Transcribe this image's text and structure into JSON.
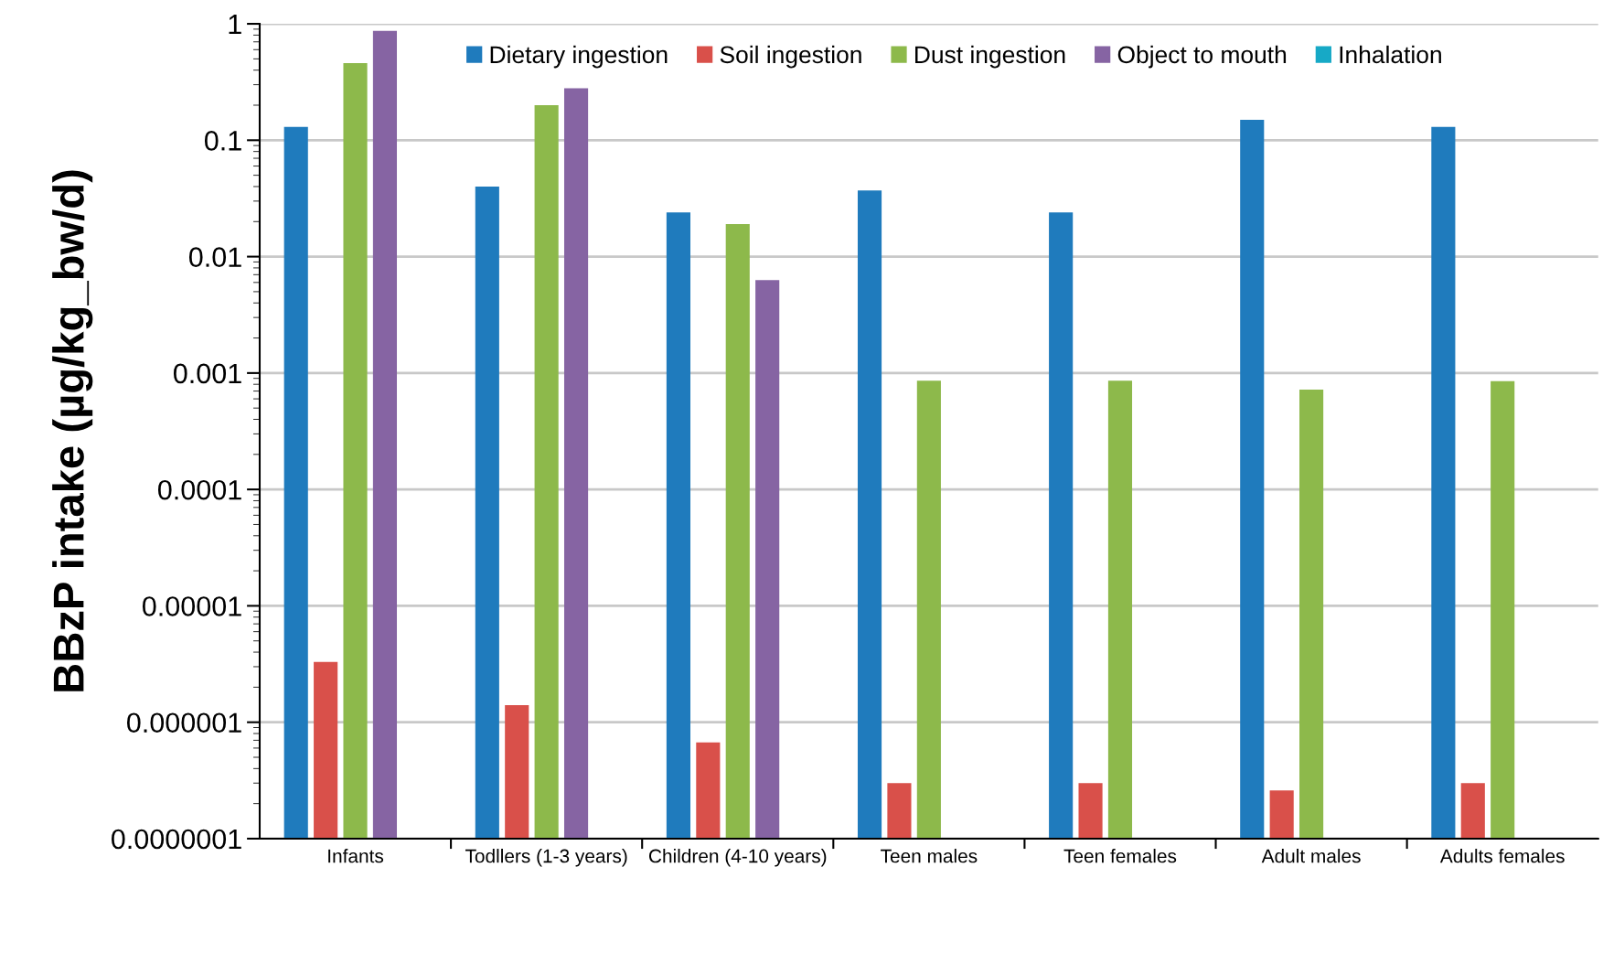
{
  "chart_data": {
    "type": "bar",
    "ylabel": "BBzP intake (µg/kg_bw/d)",
    "log": "y",
    "grid": "y",
    "legend": "top right",
    "categories": [
      "Infants",
      "Todllers (1-3 years)",
      "Children (4-10 years)",
      "Teen males",
      "Teen females",
      "Adult males",
      "Adults females"
    ],
    "ylim": [
      1e-07,
      1
    ],
    "yticks": [
      {
        "value": 1e-07,
        "label": "0.0000001"
      },
      {
        "value": 1e-06,
        "label": "0.000001"
      },
      {
        "value": 1e-05,
        "label": "0.00001"
      },
      {
        "value": 0.0001,
        "label": "0.0001"
      },
      {
        "value": 0.001,
        "label": "0.001"
      },
      {
        "value": 0.01,
        "label": "0.01"
      },
      {
        "value": 0.1,
        "label": "0.1"
      },
      1
    ],
    "series": [
      {
        "name": "Dietary ingestion",
        "color": "#1f7bbd",
        "values": [
          0.13,
          0.04,
          0.024,
          0.037,
          0.024,
          0.15,
          0.13
        ]
      },
      {
        "name": "Soil ingestion",
        "color": "#d9504a",
        "values": [
          3.3e-06,
          1.4e-06,
          6.7e-07,
          3e-07,
          3e-07,
          2.6e-07,
          3e-07
        ]
      },
      {
        "name": "Dust ingestion",
        "color": "#8db94b",
        "values": [
          0.46,
          0.2,
          0.019,
          0.00086,
          0.00086,
          0.00072,
          0.00085
        ]
      },
      {
        "name": "Object to mouth",
        "color": "#8664a3",
        "values": [
          0.87,
          0.28,
          0.0063,
          null,
          null,
          null,
          null
        ]
      },
      {
        "name": "Inhalation",
        "color": "#17a9c6",
        "values": [
          null,
          null,
          null,
          null,
          null,
          null,
          null
        ]
      }
    ]
  }
}
